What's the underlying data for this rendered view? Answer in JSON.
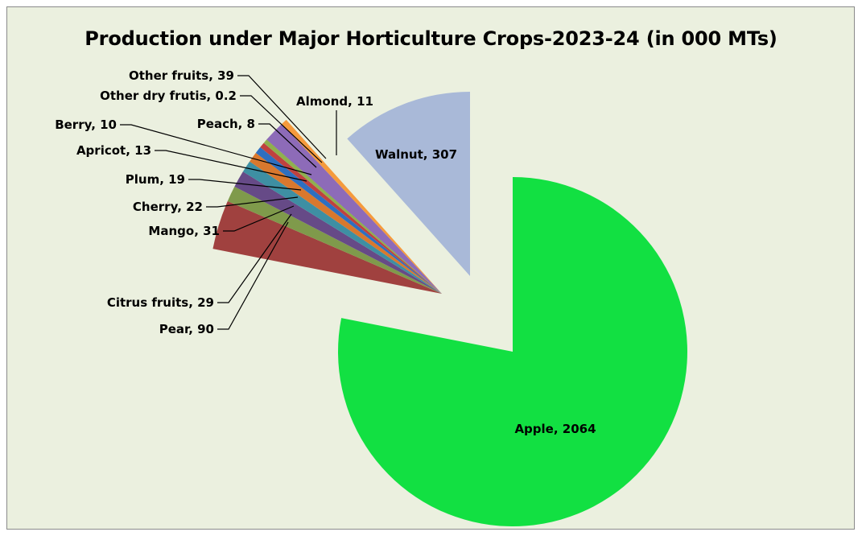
{
  "chart_data": {
    "type": "pie",
    "title": "Production under Major Horticulture Crops-2023-24 (in 000 MTs)",
    "categories": [
      "Apple",
      "Pear",
      "Citrus fruits",
      "Mango",
      "Cherry",
      "Plum",
      "Apricot",
      "Berry",
      "Peach",
      "Other dry frutis",
      "Other fruits",
      "Almond",
      "Walnut"
    ],
    "values": [
      2064,
      90,
      29,
      31,
      22,
      19,
      13,
      10,
      8,
      0.2,
      39,
      11,
      307
    ],
    "labels": [
      "Apple, 2064",
      "Pear, 90",
      "Citrus fruits, 29",
      "Mango, 31",
      "Cherry, 22",
      "Plum, 19",
      "Apricot, 13",
      "Berry, 10",
      "Peach, 8",
      "Other dry frutis, 0.2",
      "Other fruits, 39",
      "Almond, 11",
      "Walnut, 307"
    ],
    "colors": [
      "#12e042",
      "#a0413f",
      "#7f9a4b",
      "#664a87",
      "#3e8fa3",
      "#d9782e",
      "#2e6fc0",
      "#c0413f",
      "#8fb04e",
      "#7a5ea6",
      "#8d6bb8",
      "#f59a3c",
      "#a9b9d8"
    ],
    "legend": "none"
  }
}
